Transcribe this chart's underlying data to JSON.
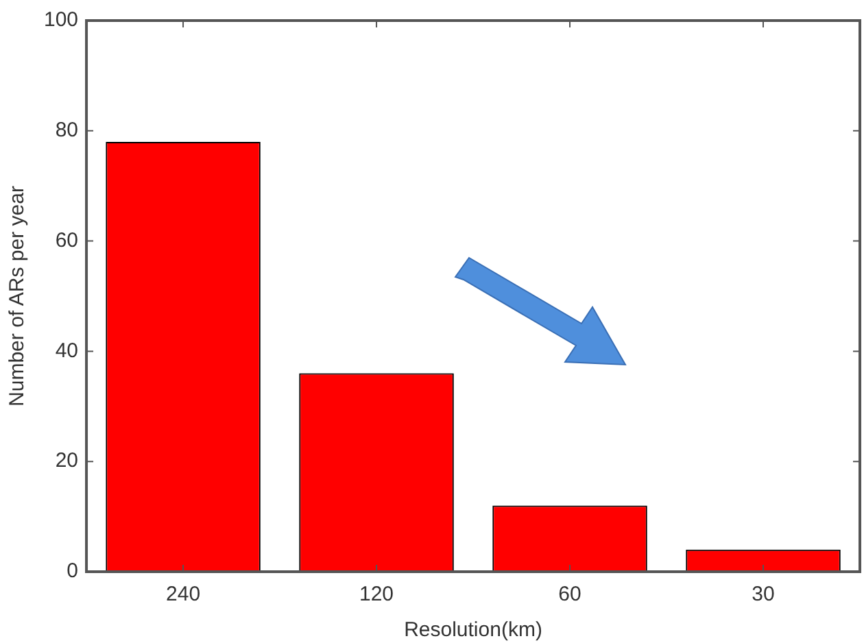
{
  "chart_data": {
    "type": "bar",
    "xlabel": "Resolution(km)",
    "ylabel": "Number of ARs per year",
    "categories": [
      "240",
      "120",
      "60",
      "30"
    ],
    "values": [
      78,
      36,
      12,
      4
    ],
    "color": "#ff0000",
    "ylim": [
      0,
      100
    ],
    "yticks": [
      0,
      20,
      40,
      60,
      80,
      100
    ],
    "grid": false,
    "legend": false
  }
}
